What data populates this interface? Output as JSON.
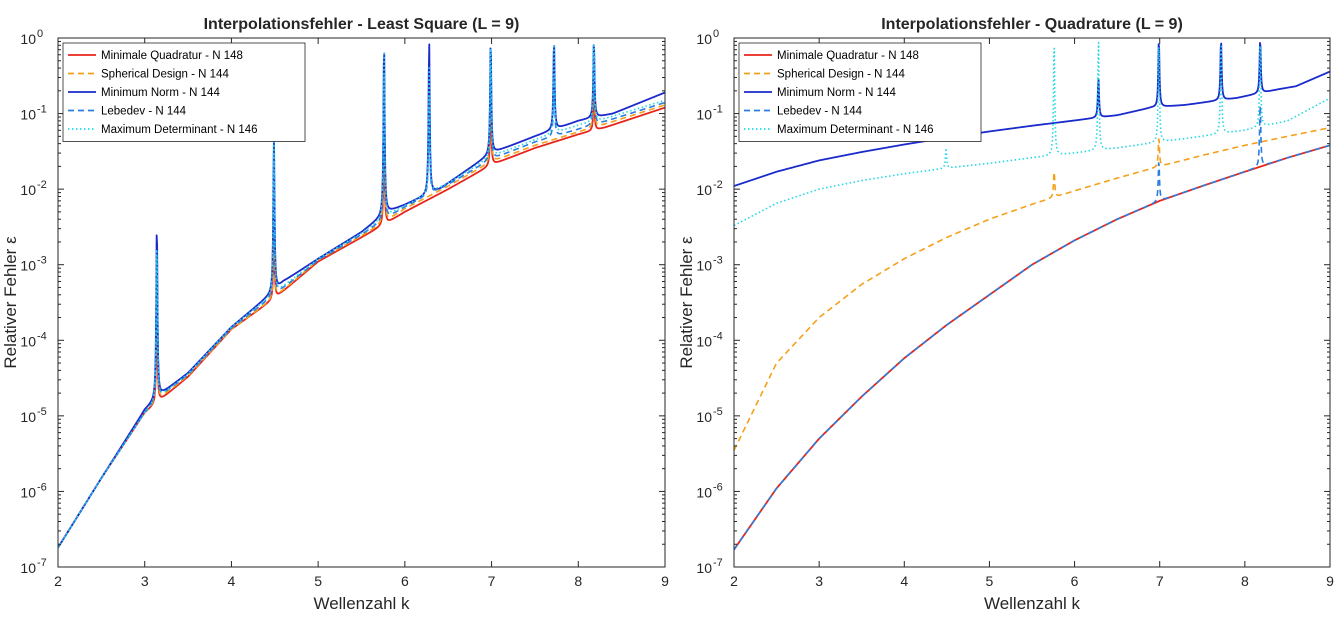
{
  "chart_data": [
    {
      "type": "line",
      "title": "Interpolationsfehler - Least Square (L = 9)",
      "xlabel": "Wellenzahl k",
      "ylabel": "Relativer Fehler ε",
      "xlim": [
        2,
        9
      ],
      "ylim": [
        1e-07,
        1
      ],
      "yscale": "log",
      "xticks": [
        "2",
        "3",
        "4",
        "5",
        "6",
        "7",
        "8",
        "9"
      ],
      "yticks": [
        {
          "base": "10",
          "exp": "-7"
        },
        {
          "base": "10",
          "exp": "-6"
        },
        {
          "base": "10",
          "exp": "-5"
        },
        {
          "base": "10",
          "exp": "-4"
        },
        {
          "base": "10",
          "exp": "-3"
        },
        {
          "base": "10",
          "exp": "-2"
        },
        {
          "base": "10",
          "exp": "-1"
        },
        {
          "base": "10",
          "exp": "0"
        }
      ],
      "grid": false,
      "legend_position": "top-left",
      "series": [
        {
          "name": "Minimale Quadratur - N 148",
          "color": "#e8251b",
          "dash": "solid",
          "baseline": [
            [
              2,
              1.8e-07
            ],
            [
              2.5,
              1.5e-06
            ],
            [
              3,
              1.1e-05
            ],
            [
              3.2,
              1.7e-05
            ],
            [
              3.5,
              3.3e-05
            ],
            [
              4,
              0.00014
            ],
            [
              4.5,
              0.00036
            ],
            [
              5,
              0.0011
            ],
            [
              5.5,
              0.0023
            ],
            [
              5.8,
              0.0036
            ],
            [
              6,
              0.005
            ],
            [
              6.5,
              0.01
            ],
            [
              7,
              0.021
            ],
            [
              7.5,
              0.035
            ],
            [
              8,
              0.053
            ],
            [
              8.3,
              0.065
            ],
            [
              9,
              0.12
            ]
          ],
          "peaks": [
            [
              3.14,
              0.0003
            ],
            [
              4.49,
              0.003
            ],
            [
              5.76,
              0.05
            ],
            [
              6.99,
              0.15
            ],
            [
              8.18,
              0.2
            ]
          ]
        },
        {
          "name": "Spherical Design - N 144",
          "color": "#f5a01a",
          "dash": "dashed",
          "baseline": [
            [
              2,
              1.8e-07
            ],
            [
              2.5,
              1.5e-06
            ],
            [
              3,
              1.1e-05
            ],
            [
              3.2,
              1.8e-05
            ],
            [
              3.5,
              3.4e-05
            ],
            [
              4,
              0.00014
            ],
            [
              4.5,
              0.00037
            ],
            [
              5,
              0.00115
            ],
            [
              5.5,
              0.0024
            ],
            [
              5.8,
              0.0039
            ],
            [
              6,
              0.0055
            ],
            [
              6.5,
              0.011
            ],
            [
              7,
              0.023
            ],
            [
              7.5,
              0.038
            ],
            [
              8,
              0.057
            ],
            [
              8.3,
              0.072
            ],
            [
              9,
              0.13
            ]
          ],
          "peaks": [
            [
              3.14,
              0.0005
            ],
            [
              4.49,
              0.005
            ],
            [
              5.76,
              0.1
            ],
            [
              6.99,
              0.3
            ],
            [
              8.18,
              0.4
            ]
          ]
        },
        {
          "name": "Minimum Norm - N 144",
          "color": "#1a2acb",
          "dash": "solid",
          "baseline": [
            [
              2,
              1.8e-07
            ],
            [
              2.5,
              1.5e-06
            ],
            [
              3,
              1.2e-05
            ],
            [
              3.2,
              2e-05
            ],
            [
              3.5,
              3.7e-05
            ],
            [
              4,
              0.00015
            ],
            [
              4.5,
              0.00045
            ],
            [
              4.6,
              0.0006
            ],
            [
              5,
              0.0012
            ],
            [
              5.5,
              0.0027
            ],
            [
              5.8,
              0.005
            ],
            [
              6,
              0.0062
            ],
            [
              6.4,
              0.01
            ],
            [
              7,
              0.03
            ],
            [
              7.5,
              0.05
            ],
            [
              8,
              0.08
            ],
            [
              8.4,
              0.1
            ],
            [
              9,
              0.19
            ]
          ],
          "peaks": [
            [
              3.14,
              0.004
            ],
            [
              4.49,
              0.06
            ],
            [
              5.76,
              1
            ],
            [
              6.28,
              1
            ],
            [
              6.99,
              1
            ],
            [
              7.72,
              1
            ],
            [
              8.18,
              1
            ]
          ]
        },
        {
          "name": "Lebedev - N 144",
          "color": "#2a7de1",
          "dash": "dashed",
          "baseline": [
            [
              2,
              1.8e-07
            ],
            [
              2.5,
              1.5e-06
            ],
            [
              3,
              1.1e-05
            ],
            [
              3.2,
              1.9e-05
            ],
            [
              3.5,
              3.5e-05
            ],
            [
              4,
              0.000145
            ],
            [
              4.5,
              0.0004
            ],
            [
              5,
              0.00115
            ],
            [
              5.5,
              0.0025
            ],
            [
              5.8,
              0.0042
            ],
            [
              6,
              0.0058
            ],
            [
              6.5,
              0.0115
            ],
            [
              7,
              0.025
            ],
            [
              7.5,
              0.042
            ],
            [
              8,
              0.062
            ],
            [
              8.3,
              0.078
            ],
            [
              9,
              0.14
            ]
          ],
          "peaks": [
            [
              3.14,
              0.002
            ],
            [
              4.49,
              0.03
            ],
            [
              5.76,
              0.5
            ],
            [
              6.28,
              0.2
            ],
            [
              6.99,
              0.6
            ],
            [
              7.72,
              0.4
            ],
            [
              8.18,
              0.8
            ]
          ]
        },
        {
          "name": "Maximum Determinant - N 146",
          "color": "#22d8e6",
          "dash": "dotted",
          "baseline": [
            [
              2,
              1.8e-07
            ],
            [
              2.5,
              1.5e-06
            ],
            [
              3,
              1.1e-05
            ],
            [
              3.2,
              1.9e-05
            ],
            [
              3.5,
              3.6e-05
            ],
            [
              4,
              0.00015
            ],
            [
              4.5,
              0.00042
            ],
            [
              5,
              0.0012
            ],
            [
              5.5,
              0.0026
            ],
            [
              5.8,
              0.0045
            ],
            [
              6,
              0.006
            ],
            [
              6.5,
              0.012
            ],
            [
              7,
              0.027
            ],
            [
              7.5,
              0.045
            ],
            [
              8,
              0.07
            ],
            [
              8.3,
              0.085
            ],
            [
              9,
              0.15
            ]
          ],
          "peaks": [
            [
              3.14,
              0.0025
            ],
            [
              4.49,
              0.05
            ],
            [
              5.76,
              1
            ],
            [
              6.28,
              0.5
            ],
            [
              6.99,
              1
            ],
            [
              7.72,
              1
            ],
            [
              8.18,
              1
            ]
          ]
        }
      ]
    },
    {
      "type": "line",
      "title": "Interpolationsfehler - Quadrature (L = 9)",
      "xlabel": "Wellenzahl k",
      "ylabel": "Relativer Fehler ε",
      "xlim": [
        2,
        9
      ],
      "ylim": [
        1e-07,
        1
      ],
      "yscale": "log",
      "xticks": [
        "2",
        "3",
        "4",
        "5",
        "6",
        "7",
        "8",
        "9"
      ],
      "yticks": [
        {
          "base": "10",
          "exp": "-7"
        },
        {
          "base": "10",
          "exp": "-6"
        },
        {
          "base": "10",
          "exp": "-5"
        },
        {
          "base": "10",
          "exp": "-4"
        },
        {
          "base": "10",
          "exp": "-3"
        },
        {
          "base": "10",
          "exp": "-2"
        },
        {
          "base": "10",
          "exp": "-1"
        },
        {
          "base": "10",
          "exp": "0"
        }
      ],
      "grid": false,
      "legend_position": "top-left",
      "series": [
        {
          "name": "Minimale Quadratur - N 148",
          "color": "#e8251b",
          "dash": "solid",
          "baseline": [
            [
              2,
              1.7e-07
            ],
            [
              2.5,
              1.1e-06
            ],
            [
              3,
              5e-06
            ],
            [
              3.5,
              1.8e-05
            ],
            [
              4,
              5.8e-05
            ],
            [
              4.5,
              0.00016
            ],
            [
              5,
              0.0004
            ],
            [
              5.5,
              0.001
            ],
            [
              6,
              0.0021
            ],
            [
              6.5,
              0.004
            ],
            [
              7,
              0.007
            ],
            [
              7.5,
              0.011
            ],
            [
              8,
              0.017
            ],
            [
              8.5,
              0.026
            ],
            [
              9,
              0.038
            ]
          ],
          "peaks": []
        },
        {
          "name": "Spherical Design - N 144",
          "color": "#f5a01a",
          "dash": "dashed",
          "baseline": [
            [
              2,
              3.5e-06
            ],
            [
              2.5,
              5e-05
            ],
            [
              3,
              0.0002
            ],
            [
              3.5,
              0.00055
            ],
            [
              4,
              0.0012
            ],
            [
              4.5,
              0.0023
            ],
            [
              5,
              0.004
            ],
            [
              5.5,
              0.0063
            ],
            [
              6,
              0.0095
            ],
            [
              6.5,
              0.014
            ],
            [
              7,
              0.02
            ],
            [
              7.5,
              0.028
            ],
            [
              8,
              0.038
            ],
            [
              8.5,
              0.05
            ],
            [
              9,
              0.065
            ]
          ],
          "peaks": [
            [
              5.76,
              0.018
            ],
            [
              6.99,
              0.05
            ]
          ]
        },
        {
          "name": "Minimum Norm - N 144",
          "color": "#1a2acb",
          "dash": "solid",
          "baseline": [
            [
              2,
              0.011
            ],
            [
              2.5,
              0.017
            ],
            [
              3,
              0.024
            ],
            [
              3.5,
              0.031
            ],
            [
              4,
              0.039
            ],
            [
              4.5,
              0.048
            ],
            [
              5,
              0.058
            ],
            [
              5.5,
              0.069
            ],
            [
              6,
              0.081
            ],
            [
              6.5,
              0.095
            ],
            [
              6.9,
              0.12
            ],
            [
              7.3,
              0.13
            ],
            [
              7.9,
              0.16
            ],
            [
              8.4,
              0.21
            ],
            [
              8.6,
              0.23
            ],
            [
              9,
              0.36
            ]
          ],
          "peaks": [
            [
              6.28,
              0.3
            ],
            [
              6.99,
              1
            ],
            [
              7.72,
              1
            ],
            [
              8.18,
              1
            ]
          ]
        },
        {
          "name": "Lebedev - N 144",
          "color": "#2a7de1",
          "dash": "dashed",
          "baseline": [
            [
              2,
              1.7e-07
            ],
            [
              2.5,
              1.1e-06
            ],
            [
              3,
              5e-06
            ],
            [
              3.5,
              1.8e-05
            ],
            [
              4,
              5.8e-05
            ],
            [
              4.5,
              0.00016
            ],
            [
              5,
              0.0004
            ],
            [
              5.5,
              0.001
            ],
            [
              6,
              0.0021
            ],
            [
              6.5,
              0.004
            ],
            [
              7,
              0.007
            ],
            [
              7.5,
              0.011
            ],
            [
              8,
              0.017
            ],
            [
              8.5,
              0.026
            ],
            [
              9,
              0.038
            ]
          ],
          "peaks": [
            [
              6.99,
              0.025
            ],
            [
              8.18,
              0.15
            ]
          ]
        },
        {
          "name": "Maximum Determinant - N 146",
          "color": "#22d8e6",
          "dash": "dotted",
          "baseline": [
            [
              2,
              0.0033
            ],
            [
              2.5,
              0.0065
            ],
            [
              3,
              0.01
            ],
            [
              3.5,
              0.013
            ],
            [
              4,
              0.016
            ],
            [
              4.5,
              0.019
            ],
            [
              5,
              0.022
            ],
            [
              5.5,
              0.026
            ],
            [
              6,
              0.03
            ],
            [
              6.5,
              0.035
            ],
            [
              7,
              0.042
            ],
            [
              7.5,
              0.05
            ],
            [
              8,
              0.06
            ],
            [
              8.5,
              0.08
            ],
            [
              9,
              0.16
            ]
          ],
          "peaks": [
            [
              4.49,
              0.035
            ],
            [
              5.76,
              1
            ],
            [
              6.28,
              1
            ],
            [
              6.99,
              1
            ],
            [
              7.72,
              1
            ],
            [
              8.18,
              1
            ]
          ]
        }
      ]
    }
  ]
}
